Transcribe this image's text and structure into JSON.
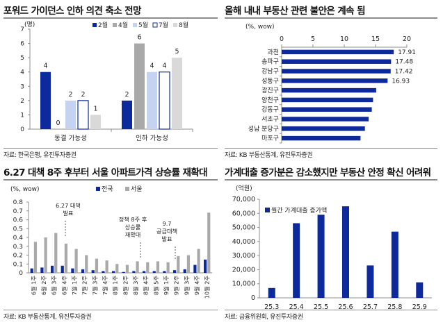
{
  "colors": {
    "navy": "#0d2a9c",
    "gray_dark": "#a9a9a9",
    "light_blue": "#c5d3f2",
    "light_gray": "#d9d9d9",
    "axis": "#8c8c8c",
    "divider": "#8c8c8c"
  },
  "panels": {
    "p1": {
      "title": "포워드 가이던스 인하 의견 축소 전망",
      "source": "자료: 한국은행, 유진투자증권"
    },
    "p2": {
      "title": "올해 내내 부동산 관련 불안은 계속 됨",
      "source": "자료: KB 부동산통계, 유진투자증권"
    },
    "p3": {
      "title": "6.27 대책 8주 후부터 서울 아파트가격 상승률 재확대",
      "source": "자료: KB 부동산통계, 유진투자증권"
    },
    "p4": {
      "title": "가계대출 증가분은 감소했지만 부동산 안정 확신 어려워",
      "source": "자료: 금융위원회, 유진투자증권"
    }
  },
  "chart_data": [
    {
      "type": "bar",
      "ylabel": "(명)",
      "ylim": [
        0,
        7
      ],
      "yticks": [
        "0",
        "1",
        "2",
        "3",
        "4",
        "5",
        "6",
        "7"
      ],
      "categories": [
        "동결 가능성",
        "인하 가능성"
      ],
      "series": [
        {
          "name": "2월",
          "values": [
            4,
            2
          ],
          "labels": [
            "4",
            "2"
          ]
        },
        {
          "name": "4월",
          "values": [
            0,
            6
          ],
          "labels": [
            "0",
            "6"
          ]
        },
        {
          "name": "5월",
          "values": [
            2,
            4
          ],
          "labels": [
            "2",
            "4"
          ]
        },
        {
          "name": "7월",
          "values": [
            2,
            4
          ],
          "labels": [
            "2",
            "4"
          ]
        },
        {
          "name": "8월",
          "values": [
            1,
            5
          ],
          "labels": [
            "1",
            "5"
          ]
        }
      ]
    },
    {
      "type": "bar",
      "orientation": "horizontal",
      "xlabel": "(%, wow)",
      "xlim": [
        0,
        20
      ],
      "xticks": [
        "0",
        "5",
        "10",
        "15",
        "20"
      ],
      "categories": [
        "과천",
        "송파구",
        "강남구",
        "성동구",
        "광진구",
        "양천구",
        "강동구",
        "서초구",
        "성남 분당구",
        "마포구"
      ],
      "values": [
        17.91,
        17.48,
        17.42,
        16.93,
        15.1,
        14.6,
        14.4,
        13.9,
        13.3,
        12.6
      ],
      "labels": [
        "17.91",
        "17.48",
        "17.42",
        "16.93"
      ]
    },
    {
      "type": "bar",
      "ylabel": "(%, wow)",
      "ylim": [
        0,
        0.8
      ],
      "yticks": [
        "0",
        "0.1",
        "0.2",
        "0.3",
        "0.4",
        "0.5",
        "0.6",
        "0.7",
        "0.8"
      ],
      "categories": [
        "6월 1주",
        "6월 2주",
        "6월 3주",
        "6월 4주",
        "7월 1주",
        "7월 2주",
        "7월 3주",
        "7월 4주",
        "8월 1주",
        "8월 2주",
        "8월 3주",
        "8월 4주",
        "8월 5주",
        "9월 1주",
        "9월 2주",
        "9월 3주",
        "9월 4주",
        "10월 2주"
      ],
      "series": [
        {
          "name": "전국",
          "values": [
            0.05,
            0.06,
            0.08,
            0.08,
            0.05,
            0.04,
            0.03,
            0.02,
            0.02,
            0.01,
            0.02,
            0.02,
            0.02,
            0.02,
            0.03,
            0.04,
            0.09,
            0.15
          ]
        },
        {
          "name": "서울",
          "values": [
            0.35,
            0.4,
            0.45,
            0.33,
            0.27,
            0.2,
            0.16,
            0.14,
            0.1,
            0.09,
            0.13,
            0.12,
            0.13,
            0.12,
            0.19,
            0.2,
            0.27,
            0.68
          ]
        }
      ],
      "annotations": [
        {
          "text": [
            "6.27 대책",
            "발표"
          ]
        },
        {
          "text": [
            "정책 8주 후",
            "상승률",
            "재확대"
          ]
        },
        {
          "text": [
            "9.7",
            "공급대책",
            "발표"
          ]
        }
      ]
    },
    {
      "type": "bar",
      "ylabel": "(억원)",
      "ylim": [
        0,
        70000
      ],
      "yticks": [
        "0",
        "10,000",
        "20,000",
        "30,000",
        "40,000",
        "50,000",
        "60,000",
        "70,000"
      ],
      "categories": [
        "25.3",
        "25.4",
        "25.5",
        "25.6",
        "25.7",
        "25.8",
        "25.9"
      ],
      "series": [
        {
          "name": "월간 가계대출 증가액",
          "values": [
            7000,
            53000,
            59000,
            65000,
            23000,
            47000,
            11000
          ]
        }
      ]
    }
  ]
}
